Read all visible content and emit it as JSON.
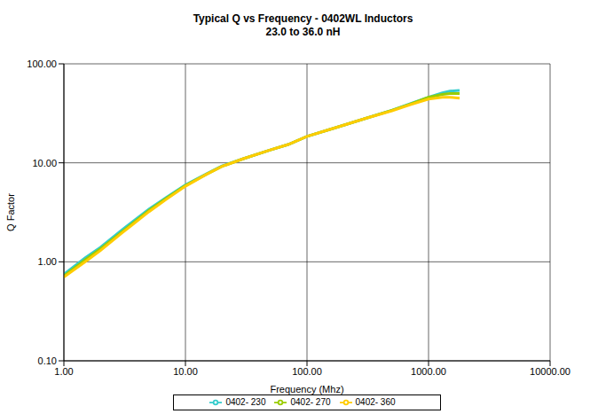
{
  "chart_data": {
    "type": "line",
    "title": "Typical Q vs Frequency - 0402WL Inductors",
    "subtitle": "23.0 to 36.0 nH",
    "x_label": "Frequency (Mhz)",
    "y_label": "Q Factor",
    "log": true,
    "grid": true,
    "legend": "bottom",
    "xlim": [
      1,
      10000
    ],
    "ylim": [
      0.1,
      100
    ],
    "xticks": [
      {
        "value": 1,
        "label": "1.00"
      },
      {
        "value": 10,
        "label": "10.00"
      },
      {
        "value": 100,
        "label": "100.00"
      },
      {
        "value": 1000,
        "label": "1000.00"
      },
      {
        "value": 10000,
        "label": "10000.00"
      }
    ],
    "yticks": [
      {
        "value": 0.1,
        "label": "0.10"
      },
      {
        "value": 1,
        "label": "1.00"
      },
      {
        "value": 10,
        "label": "10.00"
      },
      {
        "value": 100,
        "label": "100.00"
      }
    ],
    "x": [
      1,
      1.5,
      2,
      3,
      5,
      7,
      10,
      15,
      20,
      30,
      50,
      70,
      100,
      150,
      200,
      300,
      500,
      700,
      1000,
      1300,
      1500,
      1800
    ],
    "series": [
      {
        "name": "0402- 230",
        "color": "#33cccc",
        "values": [
          0.75,
          1.1,
          1.4,
          2.1,
          3.4,
          4.5,
          6.0,
          7.8,
          9.3,
          11.0,
          13.5,
          15.3,
          18.5,
          21.5,
          24.0,
          28.0,
          34.0,
          39.5,
          46.0,
          51.0,
          53.0,
          54.0
        ]
      },
      {
        "name": "0402- 270",
        "color": "#99cc00",
        "values": [
          0.72,
          1.05,
          1.35,
          2.0,
          3.3,
          4.4,
          5.9,
          7.7,
          9.2,
          11.0,
          13.5,
          15.3,
          18.5,
          21.5,
          24.0,
          28.0,
          34.0,
          39.0,
          46.0,
          49.0,
          50.0,
          50.0
        ]
      },
      {
        "name": "0402- 360",
        "color": "#ffcc00",
        "values": [
          0.7,
          1.0,
          1.3,
          1.95,
          3.2,
          4.3,
          5.8,
          7.7,
          9.2,
          11.0,
          13.5,
          15.3,
          18.5,
          21.5,
          24.0,
          28.0,
          33.5,
          38.5,
          44.0,
          46.0,
          46.0,
          45.0
        ]
      }
    ]
  }
}
